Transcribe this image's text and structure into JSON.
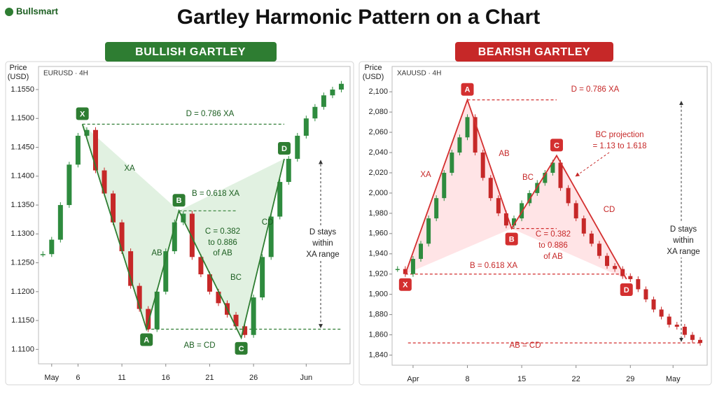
{
  "header": {
    "logo": "Bullsmart",
    "title": "Gartley Harmonic Pattern on a Chart"
  },
  "chart_data": [
    {
      "type": "candlestick",
      "badge": "BULLISH GARTLEY",
      "badge_color": "#2e7d32",
      "symbol": "EURUSD · 4H",
      "y_label": [
        "Price",
        "(USD)"
      ],
      "x": [
        2,
        3,
        4,
        5,
        6,
        7,
        8,
        9,
        10,
        11,
        12,
        13,
        14,
        15,
        16,
        17,
        18,
        19,
        20,
        21,
        22,
        23,
        24,
        25,
        26,
        27,
        28,
        29,
        30,
        31,
        32,
        33,
        34,
        35,
        36
      ],
      "values": [
        1.1265,
        1.129,
        1.135,
        1.142,
        1.147,
        1.148,
        1.141,
        1.137,
        1.132,
        1.127,
        1.121,
        1.117,
        1.1135,
        1.12,
        1.127,
        1.132,
        1.1335,
        1.126,
        1.123,
        1.12,
        1.118,
        1.116,
        1.114,
        1.1125,
        1.119,
        1.126,
        1.133,
        1.139,
        1.143,
        1.147,
        1.15,
        1.152,
        1.154,
        1.155,
        1.156
      ],
      "up_color": "#2e8b3e",
      "down_color": "#c62828",
      "pattern": {
        "color": "#2e7d32",
        "fill": "#c8e6c9",
        "points": [
          {
            "label": "X",
            "x": 6.5,
            "y": 1.149
          },
          {
            "label": "A",
            "x": 13.8,
            "y": 1.1135
          },
          {
            "label": "B",
            "x": 17.5,
            "y": 1.134
          },
          {
            "label": "C",
            "x": 24.6,
            "y": 1.112
          },
          {
            "label": "D",
            "x": 29.5,
            "y": 1.143
          }
        ]
      },
      "annotations": {
        "d_level": "D = 0.786 XA",
        "xa": "XA",
        "b_level": "B = 0.618 XA",
        "ab": "AB",
        "bc": "BC",
        "cd": "CD",
        "c_ratio": [
          "C = 0.382",
          "to 0.886",
          "of AB"
        ],
        "ab_cd": "AB = CD",
        "d_range": [
          "D stays",
          "within",
          "XA range"
        ]
      },
      "xlim": [
        1.5,
        37
      ],
      "ylim": [
        1.1075,
        1.159
      ],
      "xticks": [
        {
          "value": 3,
          "label": "May"
        },
        6,
        11,
        16,
        21,
        26,
        {
          "value": 32,
          "label": "Jun"
        }
      ],
      "yticks": [
        {
          "value": 1.11,
          "label": "1.1100"
        },
        {
          "value": 1.115,
          "label": "1.1150"
        },
        {
          "value": 1.12,
          "label": "1.1200"
        },
        {
          "value": 1.125,
          "label": "1.1250"
        },
        {
          "value": 1.13,
          "label": "1.1300"
        },
        {
          "value": 1.135,
          "label": "1.1350"
        },
        {
          "value": 1.14,
          "label": "1.1400"
        },
        {
          "value": 1.145,
          "label": "1.1450"
        },
        {
          "value": 1.15,
          "label": "1.1500"
        },
        {
          "value": 1.155,
          "label": "1.1550"
        }
      ]
    },
    {
      "type": "candlestick",
      "badge": "BEARISH GARTLEY",
      "badge_color": "#c62828",
      "symbol": "XAUUSD · 4H",
      "y_label": [
        "Price",
        "(USD)"
      ],
      "x": [
        -1,
        0,
        1,
        2,
        3,
        4,
        5,
        6,
        7,
        8,
        9,
        10,
        11,
        12,
        13,
        14,
        15,
        16,
        17,
        18,
        19,
        20,
        21,
        22,
        23,
        24,
        25,
        26,
        27,
        28,
        29,
        30,
        31,
        32,
        33,
        34,
        35,
        36,
        37,
        38
      ],
      "values": [
        1925,
        1920,
        1935,
        1950,
        1975,
        1995,
        2020,
        2040,
        2055,
        2075,
        2040,
        2015,
        1995,
        1980,
        1968,
        1975,
        1990,
        2000,
        2010,
        2020,
        2030,
        2005,
        1990,
        1975,
        1960,
        1950,
        1938,
        1928,
        1925,
        1918,
        1915,
        1905,
        1895,
        1885,
        1878,
        1870,
        1868,
        1860,
        1855,
        1852
      ],
      "up_color": "#2e8b3e",
      "down_color": "#c62828",
      "pattern": {
        "color": "#d32f2f",
        "fill": "#ffcdd2",
        "points": [
          {
            "label": "X",
            "x": 0,
            "y": 1920
          },
          {
            "label": "A",
            "x": 8,
            "y": 2092
          },
          {
            "label": "B",
            "x": 13.7,
            "y": 1965
          },
          {
            "label": "C",
            "x": 19.5,
            "y": 2037
          },
          {
            "label": "D",
            "x": 28.5,
            "y": 1915
          }
        ]
      },
      "annotations": {
        "d_level": "D = 0.786 XA",
        "xa": "XA",
        "ab": "AB",
        "bc": "BC",
        "cd": "CD",
        "bc_projection": [
          "BC projection",
          "= 1.13 to 1.618"
        ],
        "c_ratio": [
          "C = 0.382",
          "to 0.886",
          "of AB"
        ],
        "b_level": "B = 0.618 XA",
        "ab_cd": "AB = CD",
        "d_range": [
          "D stays",
          "within",
          "XA range"
        ]
      },
      "xlim": [
        -1.7,
        38.9
      ],
      "ylim": [
        1830,
        2125
      ],
      "xticks": [
        {
          "value": 1,
          "label": "Apr"
        },
        8,
        15,
        22,
        29,
        {
          "value": 34.5,
          "label": "May"
        }
      ],
      "yticks": [
        {
          "value": 1840,
          "label": "1,840"
        },
        {
          "value": 1860,
          "label": "1,860"
        },
        {
          "value": 1880,
          "label": "1,880"
        },
        {
          "value": 1900,
          "label": "1,900"
        },
        {
          "value": 1920,
          "label": "1,920"
        },
        {
          "value": 1940,
          "label": "1,940"
        },
        {
          "value": 1960,
          "label": "1,960"
        },
        {
          "value": 1980,
          "label": "1,980"
        },
        {
          "value": 2000,
          "label": "2,000"
        },
        {
          "value": 2020,
          "label": "2,020"
        },
        {
          "value": 2040,
          "label": "2,040"
        },
        {
          "value": 2060,
          "label": "2,060"
        },
        {
          "value": 2080,
          "label": "2,080"
        },
        {
          "value": 2100,
          "label": "2,100"
        }
      ]
    }
  ]
}
